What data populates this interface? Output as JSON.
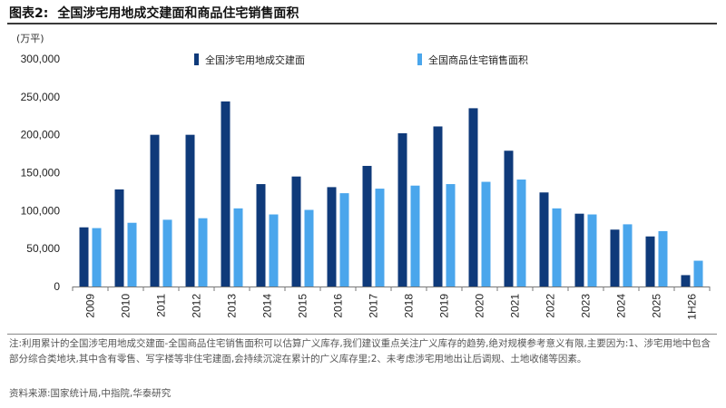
{
  "header": {
    "figure_label": "图表2:",
    "title": "全国涉宅用地成交建面和商品住宅销售面积",
    "unit": "(万平)"
  },
  "colors": {
    "series_dark": "#0f3a7a",
    "series_light": "#4aa6ec"
  },
  "chart_data": {
    "type": "bar",
    "categories": [
      "2009",
      "2010",
      "2011",
      "2012",
      "2013",
      "2014",
      "2015",
      "2016",
      "2017",
      "2018",
      "2019",
      "2020",
      "2021",
      "2022",
      "2023",
      "2024",
      "2025",
      "1H26"
    ],
    "series": [
      {
        "name": "全国涉宅用地成交建面",
        "values": [
          78000,
          128000,
          200000,
          200000,
          244000,
          135000,
          145000,
          131000,
          159000,
          202000,
          211000,
          235000,
          179000,
          124000,
          96000,
          75000,
          66000,
          15000
        ]
      },
      {
        "name": "全国商品住宅销售面积",
        "values": [
          77000,
          84000,
          88000,
          90000,
          103000,
          95000,
          101000,
          123000,
          129000,
          133000,
          135000,
          138000,
          141000,
          103000,
          95000,
          82000,
          73000,
          34000
        ]
      }
    ],
    "ylim": [
      0,
      300000
    ],
    "yticks": [
      0,
      50000,
      100000,
      150000,
      200000,
      250000,
      300000
    ],
    "ytick_labels": [
      "0",
      "50,000",
      "100,000",
      "150,000",
      "200,000",
      "250,000",
      "300,000"
    ],
    "ylabel": "(万平)",
    "xlabel": "",
    "grid": false,
    "legend_position": "top"
  },
  "footer": {
    "note": "注:利用累计的全国涉宅用地成交建面-全国商品住宅销售面积可以估算广义库存,我们建议重点关注广义库存的趋势,绝对规模参考意义有限,主要因为:1、涉宅用地中包含部分综合类地块,其中含有零售、写字楼等非住宅建面,会持续沉淀在累计的广义库存里;2、未考虑涉宅用地出让后调规、土地收储等因素。",
    "source": "资料来源:国家统计局,中指院,华泰研究"
  }
}
